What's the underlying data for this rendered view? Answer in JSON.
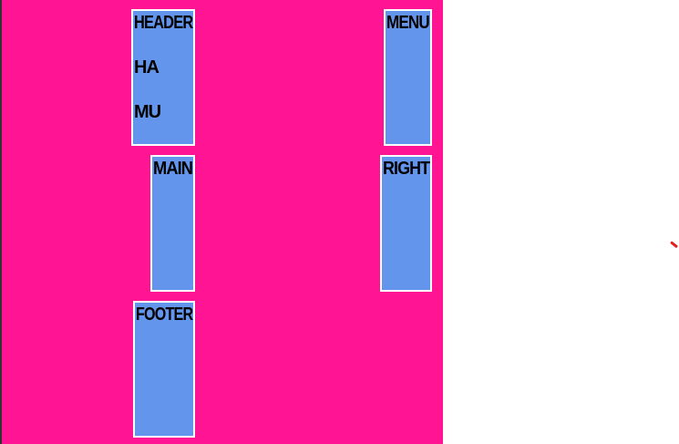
{
  "regions": {
    "header": {
      "title": "HEADER",
      "items": [
        "HA",
        "MU"
      ]
    },
    "menu": {
      "title": "MENU"
    },
    "main": {
      "title": "MAIN"
    },
    "right": {
      "title": "RIGHT"
    },
    "footer": {
      "title": "FOOTER"
    }
  },
  "colors": {
    "container_background": "#ff1493",
    "box_background": "#6495ed",
    "box_border": "#ffffff",
    "text": "#000000",
    "page_background": "#ffffff",
    "mouse_cursor": "#e0201a"
  },
  "icons": {
    "mouse_cursor": "mouse-cursor-icon"
  }
}
